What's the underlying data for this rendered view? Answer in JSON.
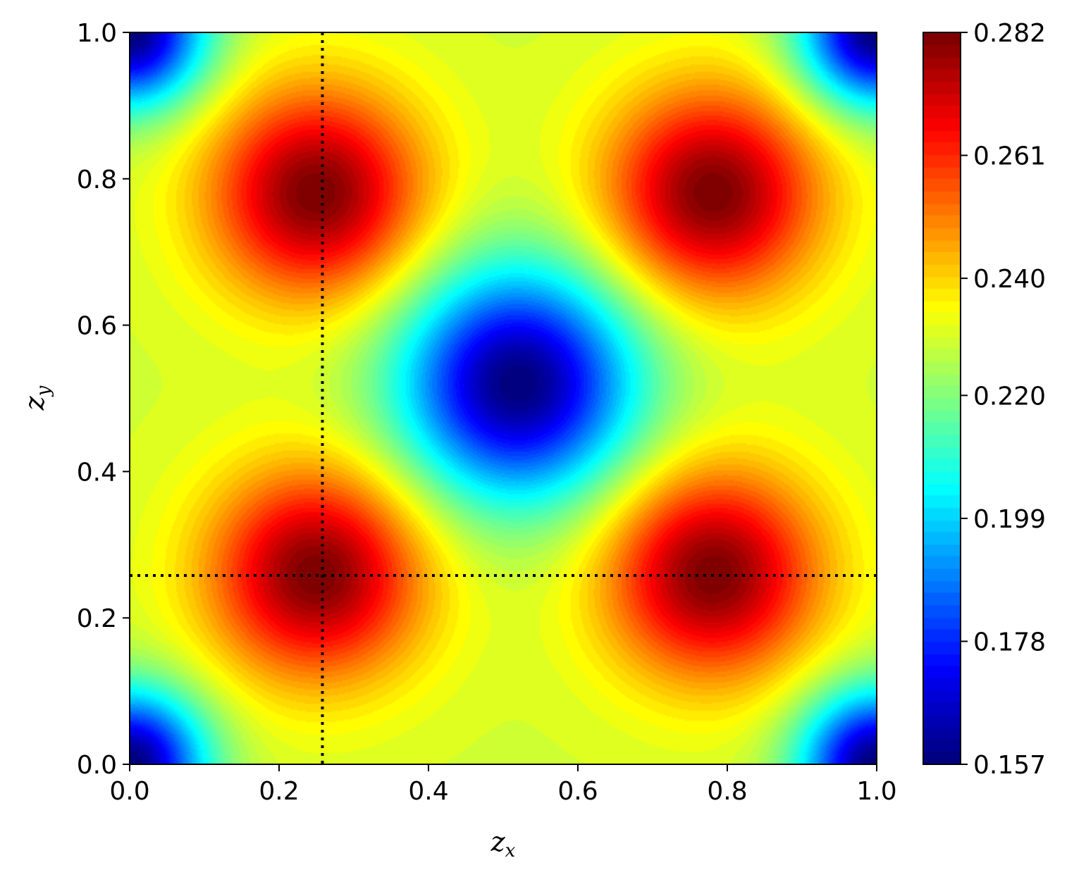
{
  "chart_data": {
    "type": "heatmap",
    "title": "",
    "xlabel": "z_x",
    "ylabel": "z_y",
    "xlabel_main": "z",
    "xlabel_sub": "x",
    "ylabel_main": "z",
    "ylabel_sub": "y",
    "xlim": [
      0.0,
      1.0
    ],
    "ylim": [
      0.0,
      1.0
    ],
    "x_ticks": [
      0.0,
      0.2,
      0.4,
      0.6,
      0.8,
      1.0
    ],
    "x_tick_labels": [
      "0.0",
      "0.2",
      "0.4",
      "0.6",
      "0.8",
      "1.0"
    ],
    "y_ticks": [
      0.0,
      0.2,
      0.4,
      0.6,
      0.8,
      1.0
    ],
    "y_tick_labels": [
      "0.0",
      "0.2",
      "0.4",
      "0.6",
      "0.8",
      "1.0"
    ],
    "colormap": "jet",
    "value_range": [
      0.157,
      0.282
    ],
    "colorbar_ticks": [
      0.157,
      0.178,
      0.199,
      0.22,
      0.24,
      0.261,
      0.282
    ],
    "colorbar_tick_labels": [
      "0.157",
      "0.178",
      "0.199",
      "0.220",
      "0.240",
      "0.261",
      "0.282"
    ],
    "maxima": [
      {
        "x": 0.25,
        "y": 0.26,
        "value": 0.282
      },
      {
        "x": 0.78,
        "y": 0.26,
        "value": 0.282
      },
      {
        "x": 0.25,
        "y": 0.78,
        "value": 0.282
      },
      {
        "x": 0.78,
        "y": 0.78,
        "value": 0.282
      }
    ],
    "minima": [
      {
        "x": 0.52,
        "y": 0.52,
        "value": 0.157
      },
      {
        "x": 0.0,
        "y": 0.0,
        "value": 0.157
      },
      {
        "x": 1.0,
        "y": 0.0,
        "value": 0.157
      },
      {
        "x": 0.0,
        "y": 1.0,
        "value": 0.157
      },
      {
        "x": 1.0,
        "y": 1.0,
        "value": 0.157
      }
    ],
    "reference_lines": [
      {
        "orientation": "vertical",
        "x": 0.258,
        "style": "dotted",
        "color": "#000000"
      },
      {
        "orientation": "horizontal",
        "y": 0.258,
        "style": "dotted",
        "color": "#000000"
      }
    ],
    "grid": false
  }
}
